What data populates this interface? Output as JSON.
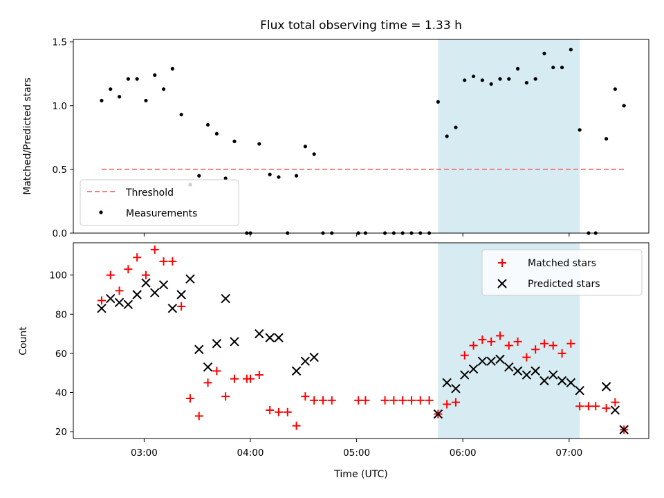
{
  "chart_data": {
    "title": "Flux total observing time = 1.33 h",
    "xlabel": "Time (UTC)",
    "x_unit": "UTC time (h:mm)",
    "xlim": [
      "02:20",
      "07:45"
    ],
    "x_tick_labels": [
      "03:00",
      "04:00",
      "05:00",
      "06:00",
      "07:00"
    ],
    "highlight_span": {
      "start": "05:46",
      "end": "07:06",
      "color": "#add8e6"
    },
    "panels": [
      {
        "type": "scatter",
        "ylabel": "Matched/Predicted stars",
        "ylim": [
          0,
          1.52
        ],
        "y_tick_labels": [
          "0.0",
          "0.5",
          "1.0",
          "1.5"
        ],
        "grid": false,
        "legend_placement": "lower-left",
        "threshold": {
          "name": "Threshold",
          "value": 0.5,
          "x_range": [
            "02:36",
            "07:31"
          ],
          "color": "#f08080",
          "style": "dashed"
        },
        "series": [
          {
            "name": "Measurements",
            "color": "#000000",
            "marker": "dot",
            "points": [
              [
                "02:36",
                1.04
              ],
              [
                "02:41",
                1.13
              ],
              [
                "02:46",
                1.07
              ],
              [
                "02:51",
                1.21
              ],
              [
                "02:56",
                1.21
              ],
              [
                "03:01",
                1.04
              ],
              [
                "03:06",
                1.24
              ],
              [
                "03:11",
                1.13
              ],
              [
                "03:16",
                1.29
              ],
              [
                "03:21",
                0.93
              ],
              [
                "03:26",
                0.38
              ],
              [
                "03:31",
                0.45
              ],
              [
                "03:36",
                0.85
              ],
              [
                "03:41",
                0.78
              ],
              [
                "03:46",
                0.43
              ],
              [
                "03:51",
                0.72
              ],
              [
                "03:58",
                0.0
              ],
              [
                "04:00",
                0.0
              ],
              [
                "04:05",
                0.7
              ],
              [
                "04:11",
                0.46
              ],
              [
                "04:16",
                0.44
              ],
              [
                "04:21",
                0.0
              ],
              [
                "04:26",
                0.45
              ],
              [
                "04:31",
                0.68
              ],
              [
                "04:36",
                0.62
              ],
              [
                "04:41",
                0.0
              ],
              [
                "04:46",
                0.0
              ],
              [
                "05:01",
                0.0
              ],
              [
                "05:05",
                0.0
              ],
              [
                "05:16",
                0.0
              ],
              [
                "05:21",
                0.0
              ],
              [
                "05:26",
                0.0
              ],
              [
                "05:31",
                0.0
              ],
              [
                "05:36",
                0.0
              ],
              [
                "05:41",
                0.0
              ],
              [
                "05:46",
                1.03
              ],
              [
                "05:51",
                0.76
              ],
              [
                "05:56",
                0.83
              ],
              [
                "06:01",
                1.2
              ],
              [
                "06:06",
                1.23
              ],
              [
                "06:11",
                1.2
              ],
              [
                "06:16",
                1.17
              ],
              [
                "06:21",
                1.21
              ],
              [
                "06:26",
                1.21
              ],
              [
                "06:31",
                1.29
              ],
              [
                "06:36",
                1.18
              ],
              [
                "06:41",
                1.21
              ],
              [
                "06:46",
                1.41
              ],
              [
                "06:51",
                1.3
              ],
              [
                "06:56",
                1.3
              ],
              [
                "07:01",
                1.44
              ],
              [
                "07:06",
                0.81
              ],
              [
                "07:11",
                0.0
              ],
              [
                "07:15",
                0.0
              ],
              [
                "07:21",
                0.74
              ],
              [
                "07:26",
                1.13
              ],
              [
                "07:31",
                1.0
              ]
            ]
          }
        ]
      },
      {
        "type": "scatter",
        "ylabel": "Count",
        "ylim": [
          16.5,
          116.5
        ],
        "y_tick_labels": [
          "20",
          "40",
          "60",
          "80",
          "100"
        ],
        "grid": false,
        "legend_placement": "upper-right",
        "series": [
          {
            "name": "Matched stars",
            "color": "#ff0000",
            "marker": "plus",
            "points": [
              [
                "02:36",
                87
              ],
              [
                "02:41",
                100
              ],
              [
                "02:46",
                92
              ],
              [
                "02:51",
                103
              ],
              [
                "02:56",
                109
              ],
              [
                "03:01",
                100
              ],
              [
                "03:06",
                113
              ],
              [
                "03:11",
                107
              ],
              [
                "03:16",
                107
              ],
              [
                "03:21",
                84
              ],
              [
                "03:26",
                37
              ],
              [
                "03:31",
                28
              ],
              [
                "03:36",
                45
              ],
              [
                "03:41",
                51
              ],
              [
                "03:46",
                38
              ],
              [
                "03:51",
                47
              ],
              [
                "03:58",
                47
              ],
              [
                "04:00",
                47
              ],
              [
                "04:05",
                49
              ],
              [
                "04:11",
                31
              ],
              [
                "04:16",
                30
              ],
              [
                "04:21",
                30
              ],
              [
                "04:26",
                23
              ],
              [
                "04:31",
                38
              ],
              [
                "04:36",
                36
              ],
              [
                "04:41",
                36
              ],
              [
                "04:46",
                36
              ],
              [
                "05:01",
                36
              ],
              [
                "05:05",
                36
              ],
              [
                "05:16",
                36
              ],
              [
                "05:21",
                36
              ],
              [
                "05:26",
                36
              ],
              [
                "05:31",
                36
              ],
              [
                "05:36",
                36
              ],
              [
                "05:41",
                36
              ],
              [
                "05:46",
                29
              ],
              [
                "05:51",
                34
              ],
              [
                "05:56",
                35
              ],
              [
                "06:01",
                59
              ],
              [
                "06:06",
                64
              ],
              [
                "06:11",
                67
              ],
              [
                "06:16",
                66
              ],
              [
                "06:21",
                69
              ],
              [
                "06:26",
                64
              ],
              [
                "06:31",
                66
              ],
              [
                "06:36",
                58
              ],
              [
                "06:41",
                62
              ],
              [
                "06:46",
                65
              ],
              [
                "06:51",
                64
              ],
              [
                "06:56",
                60
              ],
              [
                "07:01",
                65
              ],
              [
                "07:06",
                33
              ],
              [
                "07:11",
                33
              ],
              [
                "07:15",
                33
              ],
              [
                "07:21",
                32
              ],
              [
                "07:26",
                35
              ],
              [
                "07:31",
                21
              ]
            ]
          },
          {
            "name": "Predicted stars",
            "color": "#000000",
            "marker": "x",
            "points": [
              [
                "02:36",
                83
              ],
              [
                "02:41",
                88
              ],
              [
                "02:46",
                86
              ],
              [
                "02:51",
                85
              ],
              [
                "02:56",
                90
              ],
              [
                "03:01",
                96
              ],
              [
                "03:06",
                91
              ],
              [
                "03:11",
                95
              ],
              [
                "03:16",
                83
              ],
              [
                "03:21",
                90
              ],
              [
                "03:26",
                98
              ],
              [
                "03:31",
                62
              ],
              [
                "03:36",
                53
              ],
              [
                "03:41",
                65
              ],
              [
                "03:46",
                88
              ],
              [
                "03:51",
                66
              ],
              [
                "04:05",
                70
              ],
              [
                "04:11",
                68
              ],
              [
                "04:16",
                68
              ],
              [
                "04:26",
                51
              ],
              [
                "04:31",
                56
              ],
              [
                "04:36",
                58
              ],
              [
                "05:46",
                29
              ],
              [
                "05:51",
                45
              ],
              [
                "05:56",
                42
              ],
              [
                "06:01",
                49
              ],
              [
                "06:06",
                52
              ],
              [
                "06:11",
                56
              ],
              [
                "06:16",
                56
              ],
              [
                "06:21",
                57
              ],
              [
                "06:26",
                53
              ],
              [
                "06:31",
                51
              ],
              [
                "06:36",
                49
              ],
              [
                "06:41",
                51
              ],
              [
                "06:46",
                46
              ],
              [
                "06:51",
                49
              ],
              [
                "06:56",
                46
              ],
              [
                "07:01",
                45
              ],
              [
                "07:06",
                41
              ],
              [
                "07:21",
                43
              ],
              [
                "07:26",
                31
              ],
              [
                "07:31",
                21
              ]
            ]
          }
        ]
      }
    ]
  }
}
